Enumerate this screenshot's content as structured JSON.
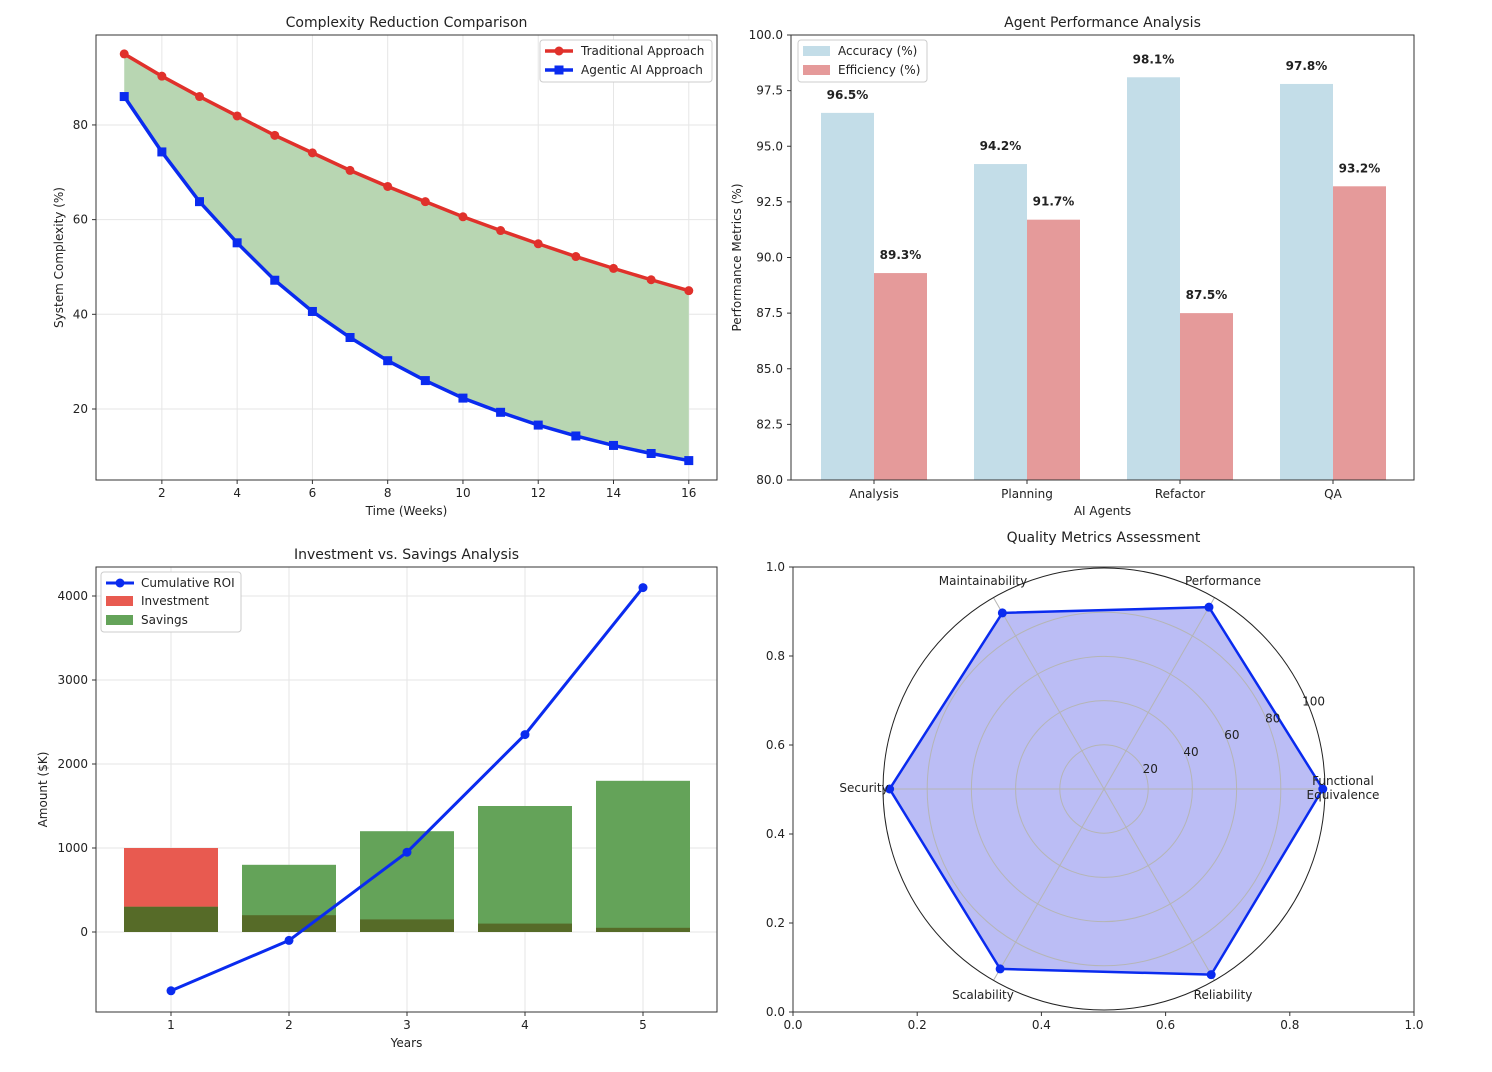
{
  "chart_data": [
    {
      "type": "line",
      "title": "Complexity Reduction Comparison",
      "xlabel": "Time (Weeks)",
      "ylabel": "System Complexity (%)",
      "xlim": [
        0.25,
        16.75
      ],
      "ylim": [
        5,
        99
      ],
      "xticks": [
        2,
        4,
        6,
        8,
        10,
        12,
        14,
        16
      ],
      "yticks": [
        20,
        40,
        60,
        80
      ],
      "grid": true,
      "legend": "top-right",
      "fill_between": {
        "color": "#b8d6b2"
      },
      "x": [
        1,
        2,
        3,
        4,
        5,
        6,
        7,
        8,
        9,
        10,
        11,
        12,
        13,
        14,
        15,
        16
      ],
      "series": [
        {
          "name": "Traditional Approach",
          "color": "#e0312b",
          "marker": "circle",
          "values": [
            95.0,
            90.3,
            86.0,
            81.9,
            77.8,
            74.1,
            70.4,
            67.0,
            63.8,
            60.6,
            57.7,
            54.9,
            52.2,
            49.7,
            47.3,
            45.0
          ]
        },
        {
          "name": "Agentic AI Approach",
          "color": "#0a2bef",
          "marker": "square",
          "values": [
            86.0,
            74.3,
            63.8,
            55.1,
            47.2,
            40.6,
            35.1,
            30.2,
            26.0,
            22.3,
            19.3,
            16.6,
            14.3,
            12.3,
            10.6,
            9.1
          ]
        }
      ]
    },
    {
      "type": "bar",
      "title": "Agent Performance Analysis",
      "xlabel": "AI Agents",
      "ylabel": "Performance Metrics (%)",
      "ylim": [
        80,
        100
      ],
      "yticks": [
        "80.0",
        "82.5",
        "85.0",
        "87.5",
        "90.0",
        "92.5",
        "95.0",
        "97.5",
        "100.0"
      ],
      "legend": "top-left",
      "categories": [
        "Analysis",
        "Planning",
        "Refactor",
        "QA"
      ],
      "series": [
        {
          "name": "Accuracy (%)",
          "color": "#c3dde8",
          "values": [
            96.5,
            94.2,
            98.1,
            97.8
          ],
          "labels": [
            "96.5%",
            "94.2%",
            "98.1%",
            "97.8%"
          ]
        },
        {
          "name": "Efficiency (%)",
          "color": "#e59a9a",
          "values": [
            89.3,
            91.7,
            87.5,
            93.2
          ],
          "labels": [
            "89.3%",
            "91.7%",
            "87.5%",
            "93.2%"
          ]
        }
      ]
    },
    {
      "type": "bar",
      "title": "Investment vs. Savings Analysis",
      "xlabel": "Years",
      "ylabel": "Amount ($K)",
      "ylim": [
        -950,
        4380
      ],
      "yticks": [
        0,
        1000,
        2000,
        3000,
        4000
      ],
      "grid": true,
      "legend": "top-left",
      "categories": [
        1,
        2,
        3,
        4,
        5
      ],
      "series": [
        {
          "name": "Cumulative ROI",
          "type": "line",
          "color": "#0a2bef",
          "values": [
            -700,
            -100,
            950,
            2350,
            4100
          ]
        },
        {
          "name": "Investment",
          "color": "#e85a50",
          "values": [
            1000,
            200,
            150,
            100,
            50
          ]
        },
        {
          "name": "Savings",
          "color": "#64a359",
          "values": [
            300,
            800,
            1200,
            1500,
            1800
          ]
        }
      ]
    },
    {
      "type": "radar",
      "title": "Quality Metrics Assessment",
      "rlim": [
        0,
        100
      ],
      "rticks": [
        20,
        40,
        60,
        80,
        100
      ],
      "xticks": [
        "0.0",
        "0.2",
        "0.4",
        "0.6",
        "0.8",
        "1.0"
      ],
      "yticks": [
        "0.0",
        "0.2",
        "0.4",
        "0.6",
        "0.8",
        "1.0"
      ],
      "categories": [
        "Functional Equivalence",
        "Performance",
        "Maintainability",
        "Security",
        "Scalability",
        "Reliability"
      ],
      "values": [
        99,
        95,
        92,
        97,
        94,
        97
      ],
      "color": "#0a2bef",
      "fill": "#bbbdf5"
    }
  ]
}
